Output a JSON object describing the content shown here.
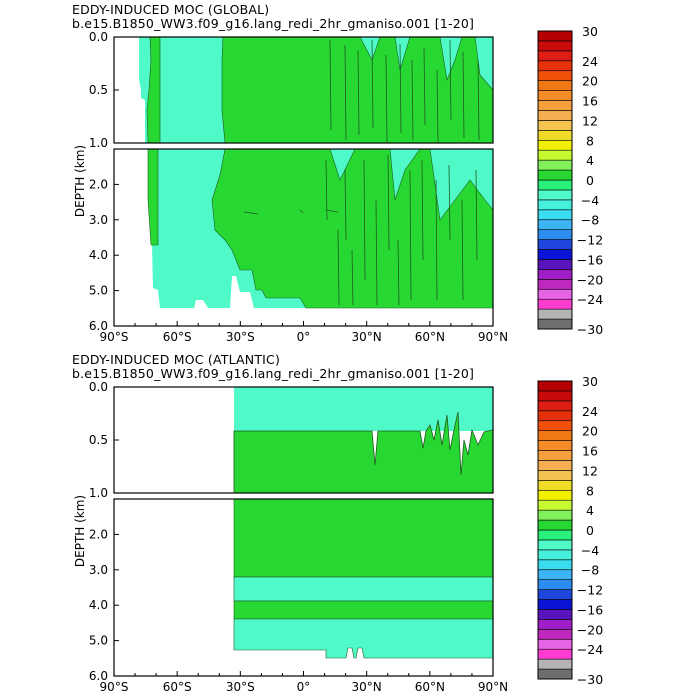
{
  "colors": {
    "background": "#ffffff",
    "frame": "#000000",
    "contour_line": "#1f5a1f"
  },
  "chart_data": [
    {
      "type": "contour",
      "title_line1": "EDDY-INDUCED MOC (GLOBAL)",
      "title_line2": "b.e15.B1850_WW3.f09_g16.lang_redi_2hr_gmaniso.001 [1-20]",
      "xlabel": "",
      "ylabel": "DEPTH (km)",
      "xlim": [
        -90,
        90
      ],
      "xticks": [
        -90,
        -60,
        -30,
        0,
        30,
        60,
        90
      ],
      "xtick_labels": [
        "90°S",
        "60°S",
        "30°S",
        "0°",
        "30°N",
        "60°N",
        "90°N"
      ],
      "upper_panel": {
        "ylim": [
          0.0,
          1.0
        ],
        "yticks": [
          0.0,
          0.5,
          1.0
        ],
        "ytick_labels": [
          "0.0",
          "0.5",
          "1.0"
        ]
      },
      "lower_panel": {
        "ylim": [
          1.0,
          6.0
        ],
        "yticks": [
          2.0,
          3.0,
          4.0,
          5.0,
          6.0
        ],
        "ytick_labels": [
          "2.0",
          "3.0",
          "4.0",
          "5.0",
          "6.0"
        ]
      },
      "field_levels_present": [
        -4,
        0
      ],
      "regions": [
        {
          "level": -4,
          "description_lat": [
            -76,
            -32
          ],
          "depth": [
            0.0,
            5.5
          ]
        },
        {
          "level": 0,
          "description_lat": [
            -74,
            90
          ],
          "depth": [
            0.0,
            5.5
          ]
        }
      ],
      "ocean_bottom_depth_km": 5.5
    },
    {
      "type": "contour",
      "title_line1": "EDDY-INDUCED MOC (ATLANTIC)",
      "title_line2": "b.e15.B1850_WW3.f09_g16.lang_redi_2hr_gmaniso.001 [1-20]",
      "xlabel": "",
      "ylabel": "DEPTH (km)",
      "xlim": [
        -90,
        90
      ],
      "xticks": [
        -90,
        -60,
        -30,
        0,
        30,
        60,
        90
      ],
      "xtick_labels": [
        "90°S",
        "60°S",
        "30°S",
        "0°",
        "30°N",
        "60°N",
        "90°N"
      ],
      "upper_panel": {
        "ylim": [
          0.0,
          1.0
        ],
        "yticks": [
          0.0,
          0.5,
          1.0
        ],
        "ytick_labels": [
          "0.0",
          "0.5",
          "1.0"
        ]
      },
      "lower_panel": {
        "ylim": [
          1.0,
          6.0
        ],
        "yticks": [
          2.0,
          3.0,
          4.0,
          5.0,
          6.0
        ],
        "ytick_labels": [
          "2.0",
          "3.0",
          "4.0",
          "5.0",
          "6.0"
        ]
      },
      "field_levels_present": [
        -4,
        0
      ],
      "southern_boundary_lat": -34,
      "bands": [
        {
          "level": -4,
          "depth": [
            0.0,
            0.42
          ]
        },
        {
          "level": 0,
          "depth": [
            0.42,
            3.2
          ]
        },
        {
          "level": -4,
          "depth": [
            3.2,
            3.9
          ]
        },
        {
          "level": 0,
          "depth": [
            3.9,
            4.38
          ]
        },
        {
          "level": -4,
          "depth": [
            4.38,
            5.5
          ]
        }
      ],
      "ocean_bottom_depth_km": 5.5
    }
  ],
  "colorbar": {
    "levels": [
      -30,
      -28,
      -26,
      -24,
      -22,
      -20,
      -18,
      -16,
      -14,
      -12,
      -10,
      -8,
      -6,
      -4,
      -2,
      0,
      2,
      4,
      6,
      8,
      10,
      12,
      14,
      16,
      18,
      20,
      22,
      24,
      26,
      28,
      30
    ],
    "labels": [
      "30",
      "24",
      "20",
      "16",
      "12",
      "8",
      "4",
      "0",
      "−4",
      "−8",
      "−12",
      "−16",
      "−20",
      "−24",
      "−30"
    ],
    "label_values": [
      30,
      24,
      20,
      16,
      12,
      8,
      4,
      0,
      -4,
      -8,
      -12,
      -16,
      -20,
      -24,
      -30
    ],
    "colors_bottom_to_top": [
      "#6e6e6e",
      "#b4b4b4",
      "#ff3cd2",
      "#e664e6",
      "#be28be",
      "#9f1ec8",
      "#5a14be",
      "#0a14d7",
      "#1e46dc",
      "#2d8cf0",
      "#3cb4f5",
      "#3cdcf0",
      "#46f0dc",
      "#50fac8",
      "#28f07a",
      "#28d832",
      "#82f05a",
      "#c8fa32",
      "#f0f000",
      "#f0dc28",
      "#f5c350",
      "#f5af50",
      "#f5a03c",
      "#f58c28",
      "#f07814",
      "#f0500a",
      "#e6320a",
      "#dc1e14",
      "#c80a0a",
      "#b40000"
    ]
  }
}
